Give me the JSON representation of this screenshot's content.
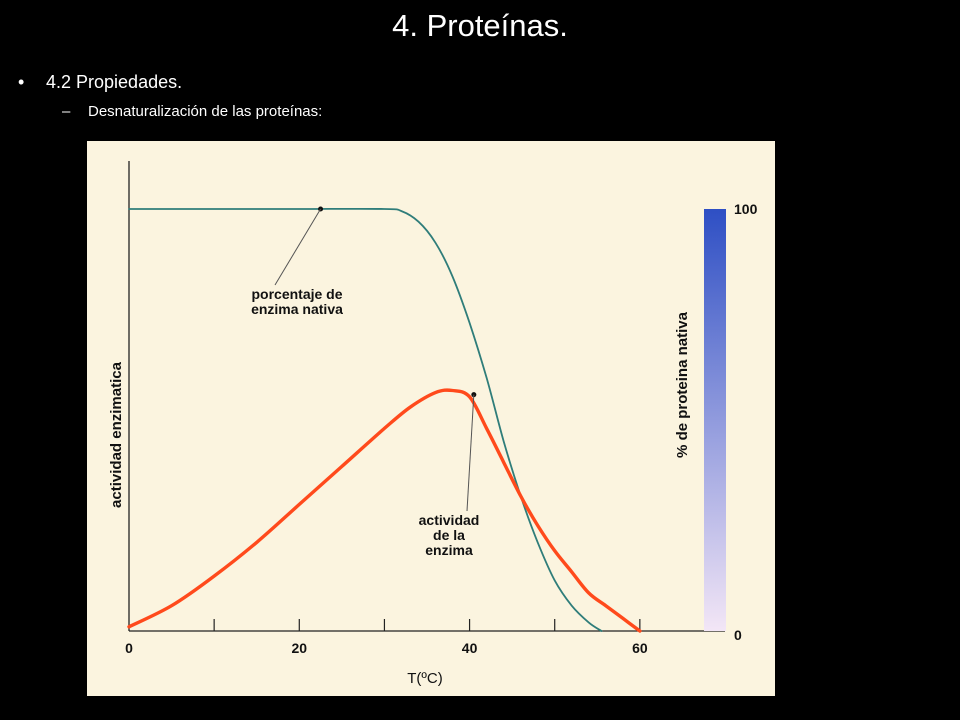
{
  "slide": {
    "title": "4. Proteínas.",
    "bullet_1": "4.2 Propiedades.",
    "bullet_2": "Desnaturalización de las proteínas:",
    "bullet_1_marker": "•",
    "bullet_2_marker": "–"
  },
  "chart_data": {
    "type": "line",
    "xlabel": "T(ºC)",
    "ylabel": "actividad enzimatica",
    "y2label": "% de proteina nativa",
    "x_ticks": [
      0,
      10,
      20,
      30,
      40,
      50,
      60
    ],
    "x_tick_labels": [
      "0",
      "20",
      "40",
      "60"
    ],
    "xlim": [
      0,
      70
    ],
    "y2_tick_labels": [
      "100",
      "0"
    ],
    "ylim": [
      0,
      100
    ],
    "series": [
      {
        "key": "native",
        "color": "#2f7d7a",
        "x": [
          0,
          10,
          20,
          30,
          32,
          34,
          36,
          38,
          40,
          42,
          44,
          46,
          48,
          50,
          52,
          54,
          55.5
        ],
        "y": [
          100,
          100,
          100,
          100,
          99.5,
          97,
          92,
          84,
          73,
          60,
          45,
          32,
          21,
          12,
          6,
          2,
          0
        ]
      },
      {
        "key": "activity",
        "color": "#ff4a1c",
        "x": [
          0,
          5,
          10,
          15,
          20,
          25,
          30,
          33,
          36,
          38,
          40,
          42,
          44,
          46,
          48,
          50,
          52,
          54,
          56,
          58,
          60
        ],
        "y": [
          1,
          6,
          13,
          21,
          30,
          39,
          48,
          53,
          56.5,
          57,
          55.5,
          48,
          40,
          32,
          25,
          19,
          14,
          9,
          6,
          3,
          0
        ]
      }
    ],
    "annotations": [
      {
        "text_lines": [
          "porcentaje de",
          "enzima nativa"
        ],
        "x": 22.5,
        "y": 100,
        "series": "native"
      },
      {
        "text_lines": [
          "actividad",
          "de la",
          "enzima"
        ],
        "x": 40.5,
        "y": 56,
        "series": "activity"
      }
    ],
    "colorbar": {
      "top_color": "#2e4fc4",
      "bottom_color": "#f3e6f6"
    },
    "background": "#fbf4df"
  }
}
